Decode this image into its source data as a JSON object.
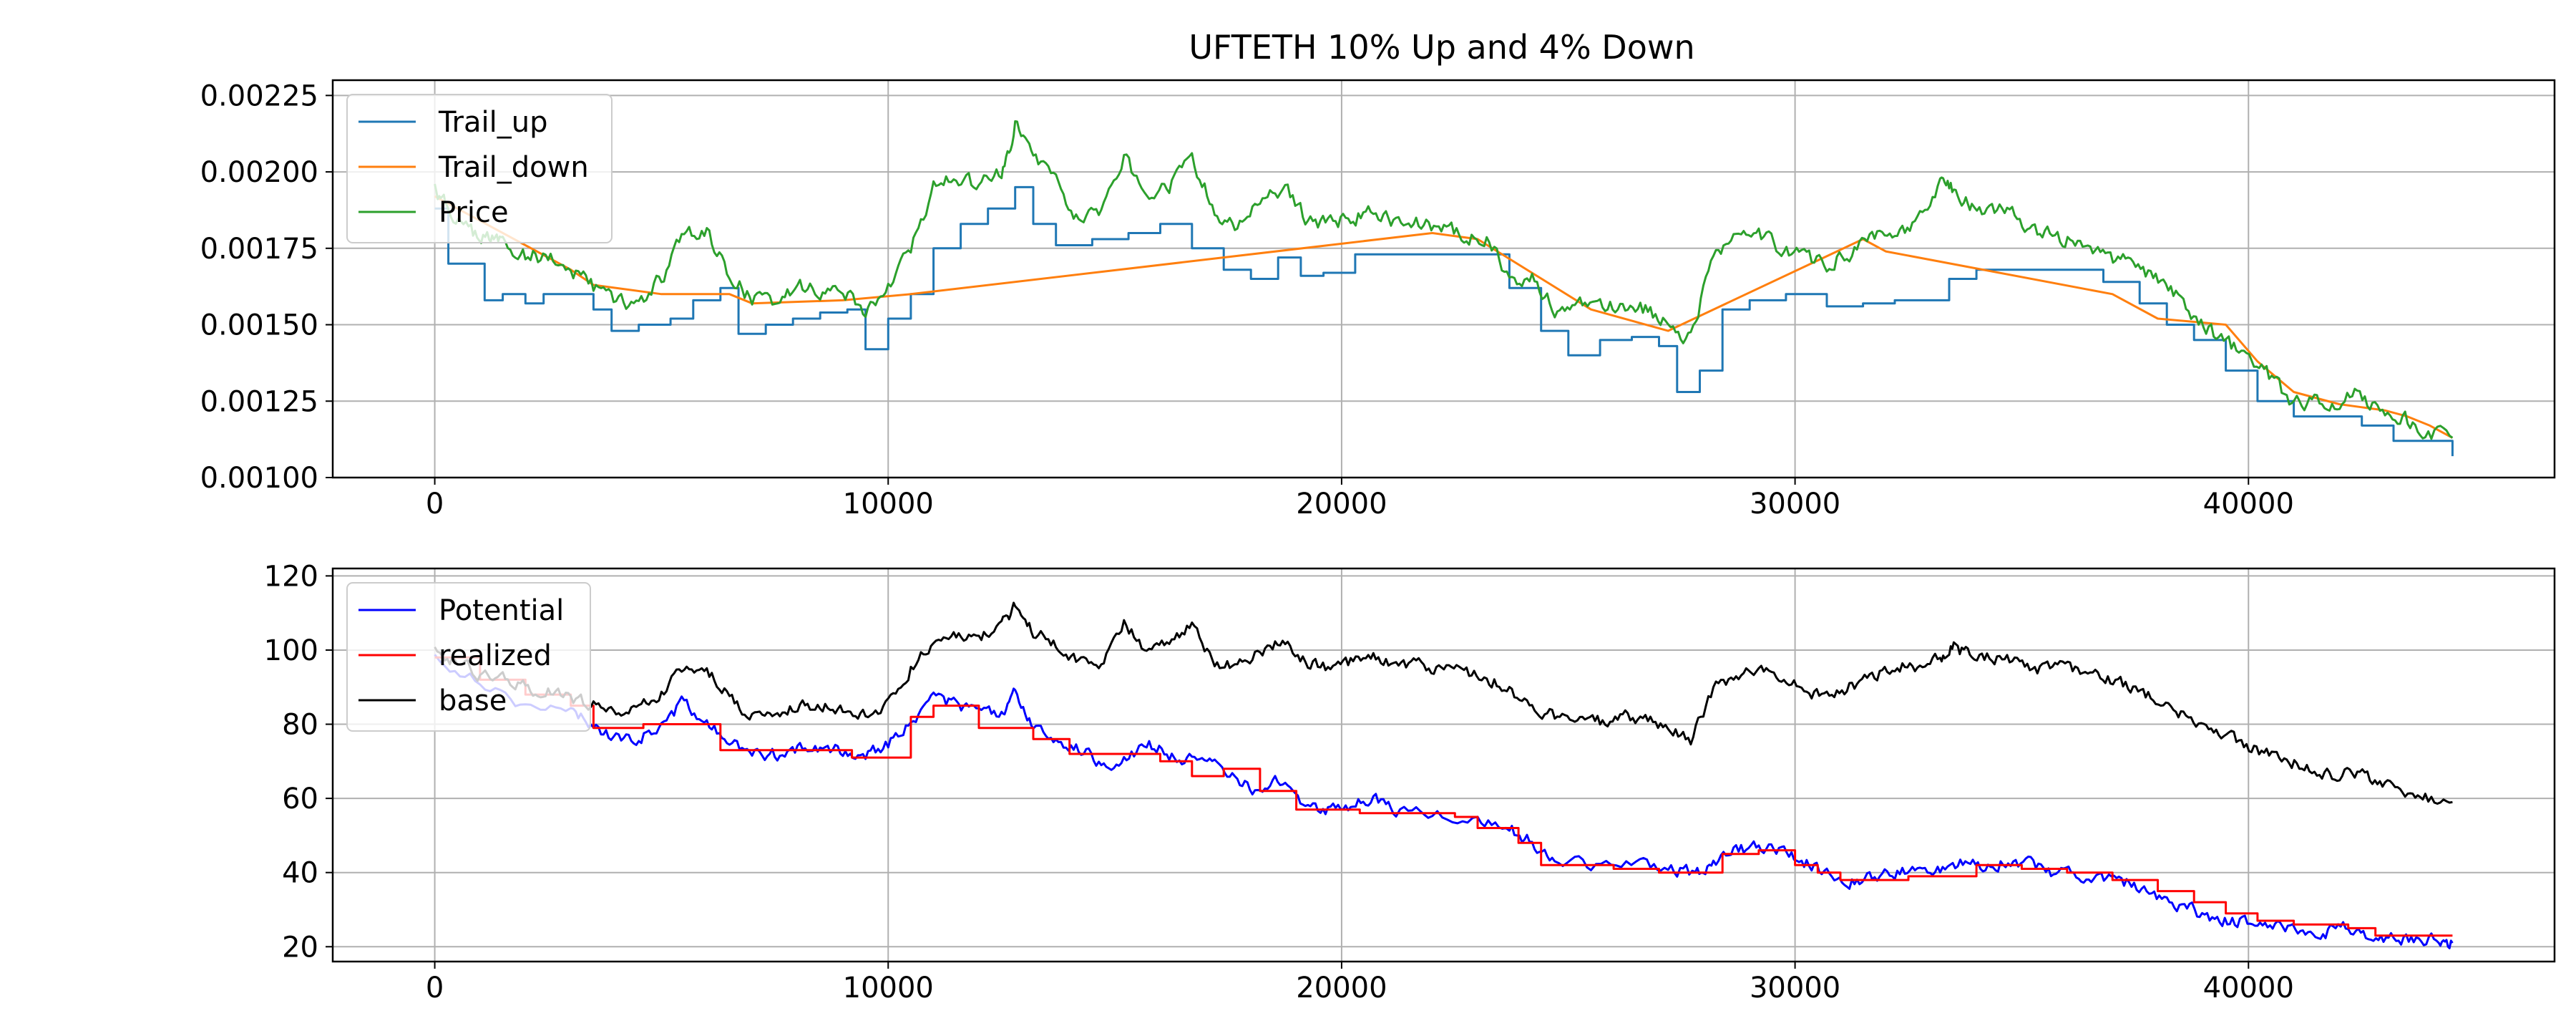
{
  "figure": {
    "title": "UFTETH 10% Up and 4% Down"
  },
  "chart_data": [
    {
      "type": "line",
      "title": "UFTETH 10% Up and 4% Down",
      "xlabel": "",
      "ylabel": "",
      "xlim": [
        -2250,
        46750
      ],
      "ylim": [
        0.001,
        0.0023
      ],
      "xticks": [
        0,
        10000,
        20000,
        30000,
        40000
      ],
      "yticks": [
        0.001,
        0.00125,
        0.0015,
        0.00175,
        0.002,
        0.00225
      ],
      "xtick_labels": [
        "0",
        "10000",
        "20000",
        "30000",
        "40000"
      ],
      "ytick_labels": [
        "0.00100",
        "0.00125",
        "0.00150",
        "0.00175",
        "0.00200",
        "0.00225"
      ],
      "grid": true,
      "legend": "upper left",
      "series": [
        {
          "name": "Trail_up",
          "color": "#1f77b4",
          "style": "step",
          "x": [
            0,
            300,
            1100,
            1500,
            2000,
            2400,
            3000,
            3500,
            3900,
            4500,
            5200,
            5700,
            6300,
            6700,
            7300,
            7900,
            8500,
            9100,
            9500,
            10000,
            10500,
            11000,
            11600,
            12200,
            12800,
            13200,
            13700,
            14500,
            15300,
            16000,
            16700,
            17400,
            18000,
            18600,
            19100,
            19600,
            20300,
            21000,
            22000,
            23000,
            23700,
            24400,
            25000,
            25700,
            26400,
            27000,
            27400,
            27900,
            28400,
            29000,
            29800,
            30700,
            31500,
            32200,
            32800,
            33400,
            34000,
            34700,
            35500,
            36200,
            36800,
            37600,
            38200,
            38800,
            39500,
            40200,
            41000,
            41700,
            42500,
            43200,
            44500
          ],
          "y": [
            0.00188,
            0.0017,
            0.00158,
            0.0016,
            0.00157,
            0.0016,
            0.0016,
            0.00155,
            0.00148,
            0.0015,
            0.00152,
            0.00158,
            0.00162,
            0.00147,
            0.0015,
            0.00152,
            0.00154,
            0.00155,
            0.00142,
            0.00152,
            0.0016,
            0.00175,
            0.00183,
            0.00188,
            0.00195,
            0.00183,
            0.00176,
            0.00178,
            0.0018,
            0.00183,
            0.00175,
            0.00168,
            0.00165,
            0.00172,
            0.00166,
            0.00167,
            0.00173,
            0.00173,
            0.00173,
            0.00173,
            0.00162,
            0.00148,
            0.0014,
            0.00145,
            0.00146,
            0.00143,
            0.00128,
            0.00135,
            0.00155,
            0.00158,
            0.0016,
            0.00156,
            0.00157,
            0.00158,
            0.00158,
            0.00165,
            0.00168,
            0.00168,
            0.00168,
            0.00168,
            0.00164,
            0.00157,
            0.0015,
            0.00145,
            0.00135,
            0.00125,
            0.0012,
            0.0012,
            0.00117,
            0.00112,
            0.00107
          ]
        },
        {
          "name": "Trail_down",
          "color": "#ff7f0e",
          "style": "line",
          "x": [
            0,
            3000,
            3500,
            5000,
            6500,
            7000,
            9000,
            10500,
            22000,
            23000,
            25500,
            27200,
            31500,
            32000,
            37000,
            38000,
            39500,
            40200,
            41000,
            42000,
            42500,
            43000,
            43500,
            44000,
            44500
          ],
          "y": [
            0.00192,
            0.00168,
            0.00163,
            0.0016,
            0.0016,
            0.00157,
            0.00158,
            0.0016,
            0.0018,
            0.00178,
            0.00155,
            0.00148,
            0.00178,
            0.00174,
            0.0016,
            0.00152,
            0.0015,
            0.00138,
            0.00128,
            0.00124,
            0.00123,
            0.00122,
            0.0012,
            0.00117,
            0.00113
          ]
        },
        {
          "name": "Price",
          "color": "#2ca02c",
          "style": "noisy",
          "x": [
            0,
            300,
            800,
            1200,
            1500,
            2000,
            2500,
            3000,
            3500,
            4000,
            4500,
            5000,
            5500,
            6000,
            6500,
            7000,
            7500,
            8000,
            8500,
            9000,
            9500,
            10000,
            10500,
            11000,
            11500,
            12000,
            12500,
            12800,
            13200,
            13700,
            14200,
            14700,
            15200,
            15700,
            16200,
            16700,
            17200,
            17700,
            18200,
            18700,
            19200,
            19700,
            20200,
            20700,
            21200,
            21700,
            22200,
            22700,
            23200,
            23700,
            24200,
            24700,
            25200,
            25700,
            26200,
            26700,
            27200,
            27700,
            28200,
            28700,
            29200,
            29700,
            30200,
            30700,
            31200,
            31700,
            32200,
            32700,
            33200,
            33500,
            33900,
            34400,
            34900,
            35400,
            35900,
            36400,
            36900,
            37400,
            37900,
            38400,
            38900,
            39400,
            39900,
            40400,
            40900,
            41400,
            41900,
            42400,
            42900,
            43400,
            43900,
            44500
          ],
          "y": [
            0.00195,
            0.00188,
            0.0018,
            0.00178,
            0.00177,
            0.00173,
            0.00172,
            0.00168,
            0.00162,
            0.00157,
            0.00157,
            0.00165,
            0.0018,
            0.0018,
            0.00167,
            0.00158,
            0.00158,
            0.00163,
            0.00161,
            0.00162,
            0.00155,
            0.00162,
            0.00175,
            0.00195,
            0.00198,
            0.00195,
            0.002,
            0.00215,
            0.00205,
            0.00197,
            0.00185,
            0.00187,
            0.00205,
            0.00193,
            0.00195,
            0.00205,
            0.00187,
            0.00183,
            0.0019,
            0.00195,
            0.00185,
            0.00183,
            0.00185,
            0.00187,
            0.00183,
            0.00183,
            0.00182,
            0.0018,
            0.00178,
            0.00165,
            0.00165,
            0.00155,
            0.00158,
            0.00155,
            0.00157,
            0.00155,
            0.0015,
            0.00145,
            0.00175,
            0.00178,
            0.0018,
            0.00175,
            0.00172,
            0.0017,
            0.00173,
            0.0018,
            0.00178,
            0.00183,
            0.00195,
            0.00195,
            0.00188,
            0.00188,
            0.00185,
            0.0018,
            0.00178,
            0.00178,
            0.00172,
            0.0017,
            0.00165,
            0.0016,
            0.0015,
            0.00145,
            0.0014,
            0.00135,
            0.00125,
            0.00125,
            0.00125,
            0.00128,
            0.00122,
            0.0012,
            0.00115,
            0.00113
          ]
        }
      ]
    },
    {
      "type": "line",
      "title": "",
      "xlabel": "",
      "ylabel": "",
      "xlim": [
        -2250,
        46750
      ],
      "ylim": [
        16,
        122
      ],
      "xticks": [
        0,
        10000,
        20000,
        30000,
        40000
      ],
      "yticks": [
        20,
        40,
        60,
        80,
        100,
        120
      ],
      "xtick_labels": [
        "0",
        "10000",
        "20000",
        "30000",
        "40000"
      ],
      "ytick_labels": [
        "20",
        "40",
        "60",
        "80",
        "100",
        "120"
      ],
      "grid": true,
      "legend": "upper left",
      "series": [
        {
          "name": "Potential",
          "color": "#0000ff",
          "style": "noisy",
          "x": [
            0,
            1000,
            2000,
            3000,
            3500,
            4000,
            4500,
            5000,
            5500,
            6000,
            6500,
            7000,
            7500,
            8000,
            8500,
            9000,
            9500,
            10000,
            10500,
            11000,
            11500,
            12000,
            12500,
            12800,
            13200,
            13700,
            14200,
            14700,
            15200,
            15700,
            16200,
            16700,
            17200,
            17700,
            18200,
            18700,
            19200,
            19700,
            20200,
            20700,
            21200,
            22000,
            23000,
            23700,
            24200,
            24700,
            25500,
            26500,
            27200,
            27800,
            28200,
            28700,
            29200,
            29700,
            30200,
            30700,
            31200,
            31700,
            32200,
            32700,
            33200,
            33700,
            34200,
            34700,
            35200,
            35700,
            36200,
            36700,
            37200,
            37700,
            38200,
            38700,
            39200,
            39700,
            40200,
            40700,
            41200,
            41700,
            42200,
            42700,
            43200,
            43700,
            44200,
            44500
          ],
          "y": [
            98,
            92,
            85,
            83,
            80,
            76,
            76,
            80,
            86,
            80,
            75,
            72,
            72,
            73,
            73,
            73,
            72,
            75,
            80,
            88,
            85,
            84,
            82,
            88,
            80,
            76,
            73,
            70,
            70,
            75,
            72,
            70,
            69,
            65,
            62,
            65,
            58,
            57,
            58,
            60,
            57,
            56,
            54,
            52,
            48,
            44,
            42,
            42,
            41,
            40,
            43,
            46,
            47,
            46,
            43,
            40,
            38,
            39,
            40,
            40,
            41,
            43,
            42,
            43,
            42,
            40,
            40,
            39,
            38,
            35,
            32,
            30,
            28,
            27,
            26,
            25,
            25,
            24,
            25,
            23,
            22,
            22,
            22,
            21
          ]
        },
        {
          "name": "realized",
          "color": "#ff0000",
          "style": "step",
          "x": [
            0,
            1000,
            2000,
            3000,
            3500,
            4600,
            6300,
            8500,
            9200,
            10500,
            11000,
            12000,
            13200,
            14000,
            16000,
            16700,
            17400,
            18200,
            19000,
            20400,
            21000,
            22000,
            22500,
            23000,
            23900,
            24400,
            26000,
            27000,
            27700,
            28400,
            29200,
            30000,
            30500,
            31000,
            32500,
            34000,
            35000,
            36000,
            37000,
            38000,
            38800,
            39500,
            40200,
            41000,
            42200,
            42800,
            44500
          ],
          "y": [
            98,
            92,
            88,
            85,
            79,
            80,
            73,
            73,
            71,
            82,
            85,
            79,
            76,
            72,
            70,
            66,
            68,
            62,
            57,
            56,
            56,
            56,
            55,
            52,
            48,
            42,
            41,
            40,
            40,
            45,
            46,
            42,
            40,
            38,
            39,
            42,
            41,
            40,
            38,
            35,
            32,
            29,
            27,
            26,
            25,
            23,
            23
          ]
        },
        {
          "name": "base",
          "color": "#000000",
          "style": "noisy",
          "x": [
            0,
            500,
            1000,
            1500,
            2000,
            2500,
            3000,
            3500,
            4000,
            4500,
            5000,
            5500,
            6000,
            6500,
            7000,
            7500,
            8000,
            8500,
            9000,
            9500,
            10000,
            10500,
            11000,
            11500,
            12000,
            12500,
            12800,
            13200,
            13700,
            14200,
            14700,
            15200,
            15700,
            16200,
            16700,
            17200,
            17700,
            18200,
            18700,
            19200,
            19700,
            20200,
            20700,
            21200,
            21700,
            22200,
            22700,
            23200,
            23700,
            24200,
            24700,
            25200,
            25700,
            26200,
            26700,
            27200,
            27700,
            28200,
            28700,
            29200,
            29700,
            30200,
            30700,
            31200,
            31700,
            32200,
            32700,
            33200,
            33500,
            33900,
            34400,
            34900,
            35400,
            35900,
            36400,
            36900,
            37400,
            37900,
            38400,
            38900,
            39400,
            39900,
            40400,
            40900,
            41400,
            41900,
            42400,
            42900,
            43400,
            43900,
            44500
          ],
          "y": [
            100,
            97,
            93,
            92,
            90,
            89,
            87,
            85,
            83,
            85,
            88,
            95,
            95,
            87,
            82,
            82,
            85,
            85,
            84,
            82,
            85,
            95,
            102,
            104,
            103,
            107,
            112,
            105,
            102,
            97,
            97,
            107,
            100,
            102,
            107,
            97,
            95,
            100,
            103,
            97,
            95,
            97,
            98,
            96,
            96,
            95,
            94,
            92,
            90,
            84,
            82,
            83,
            81,
            82,
            81,
            79,
            75,
            90,
            92,
            95,
            92,
            89,
            88,
            90,
            92,
            96,
            95,
            98,
            101,
            98,
            98,
            97,
            95,
            95,
            94,
            92,
            90,
            87,
            84,
            80,
            78,
            74,
            72,
            70,
            68,
            66,
            67,
            64,
            62,
            60,
            59
          ]
        }
      ]
    }
  ]
}
